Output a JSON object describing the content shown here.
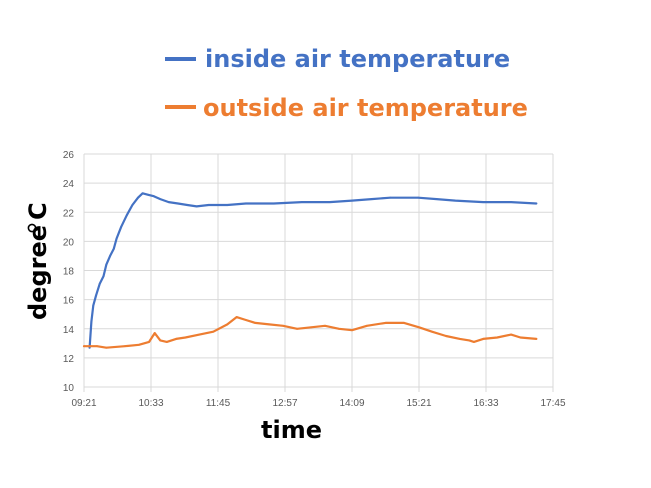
{
  "chart_data": {
    "type": "line",
    "title": "",
    "xlabel": "time",
    "ylabel": "degree °C",
    "ylabel_main": "degree",
    "ylabel_unit": "C",
    "ylim": [
      10,
      26
    ],
    "y_ticks": [
      10,
      12,
      14,
      16,
      18,
      20,
      22,
      24,
      26
    ],
    "x_range_minutes": [
      561,
      1065
    ],
    "x_tick_labels": [
      "09:21",
      "10:33",
      "11:45",
      "12:57",
      "14:09",
      "15:21",
      "16:33",
      "17:45"
    ],
    "x_ticks_minutes": [
      561,
      633,
      705,
      777,
      849,
      921,
      993,
      1065
    ],
    "grid": true,
    "legend_position": "top",
    "series": [
      {
        "name": "inside air temperature",
        "color": "#4472c4",
        "points": [
          [
            "09:27",
            12.7
          ],
          [
            "09:29",
            14.5
          ],
          [
            "09:31",
            15.6
          ],
          [
            "09:34",
            16.3
          ],
          [
            "09:38",
            17.1
          ],
          [
            "09:42",
            17.6
          ],
          [
            "09:45",
            18.4
          ],
          [
            "09:49",
            19.0
          ],
          [
            "09:53",
            19.5
          ],
          [
            "09:56",
            20.2
          ],
          [
            "10:01",
            21.0
          ],
          [
            "10:07",
            21.8
          ],
          [
            "10:13",
            22.5
          ],
          [
            "10:19",
            23.0
          ],
          [
            "10:24",
            23.3
          ],
          [
            "10:30",
            23.2
          ],
          [
            "10:36",
            23.1
          ],
          [
            "10:43",
            22.9
          ],
          [
            "10:52",
            22.7
          ],
          [
            "11:02",
            22.6
          ],
          [
            "11:12",
            22.5
          ],
          [
            "11:22",
            22.4
          ],
          [
            "11:35",
            22.5
          ],
          [
            "11:55",
            22.5
          ],
          [
            "12:15",
            22.6
          ],
          [
            "12:45",
            22.6
          ],
          [
            "13:15",
            22.7
          ],
          [
            "13:45",
            22.7
          ],
          [
            "14:09",
            22.8
          ],
          [
            "14:30",
            22.9
          ],
          [
            "14:50",
            23.0
          ],
          [
            "15:20",
            23.0
          ],
          [
            "15:40",
            22.9
          ],
          [
            "16:00",
            22.8
          ],
          [
            "16:30",
            22.7
          ],
          [
            "17:00",
            22.7
          ],
          [
            "17:27",
            22.6
          ]
        ]
      },
      {
        "name": "outside air temperature",
        "color": "#ed7d31",
        "points": [
          [
            "09:21",
            12.8
          ],
          [
            "09:35",
            12.8
          ],
          [
            "09:45",
            12.7
          ],
          [
            "10:05",
            12.8
          ],
          [
            "10:20",
            12.9
          ],
          [
            "10:31",
            13.1
          ],
          [
            "10:37",
            13.7
          ],
          [
            "10:43",
            13.2
          ],
          [
            "10:50",
            13.1
          ],
          [
            "11:00",
            13.3
          ],
          [
            "11:10",
            13.4
          ],
          [
            "11:25",
            13.6
          ],
          [
            "11:40",
            13.8
          ],
          [
            "11:55",
            14.3
          ],
          [
            "12:05",
            14.8
          ],
          [
            "12:15",
            14.6
          ],
          [
            "12:25",
            14.4
          ],
          [
            "12:40",
            14.3
          ],
          [
            "12:55",
            14.2
          ],
          [
            "13:10",
            14.0
          ],
          [
            "13:25",
            14.1
          ],
          [
            "13:40",
            14.2
          ],
          [
            "13:55",
            14.0
          ],
          [
            "14:09",
            13.9
          ],
          [
            "14:25",
            14.2
          ],
          [
            "14:45",
            14.4
          ],
          [
            "15:05",
            14.4
          ],
          [
            "15:21",
            14.1
          ],
          [
            "15:35",
            13.8
          ],
          [
            "15:50",
            13.5
          ],
          [
            "16:05",
            13.3
          ],
          [
            "16:15",
            13.2
          ],
          [
            "16:20",
            13.1
          ],
          [
            "16:30",
            13.3
          ],
          [
            "16:45",
            13.4
          ],
          [
            "17:00",
            13.6
          ],
          [
            "17:10",
            13.4
          ],
          [
            "17:27",
            13.3
          ]
        ]
      }
    ]
  }
}
